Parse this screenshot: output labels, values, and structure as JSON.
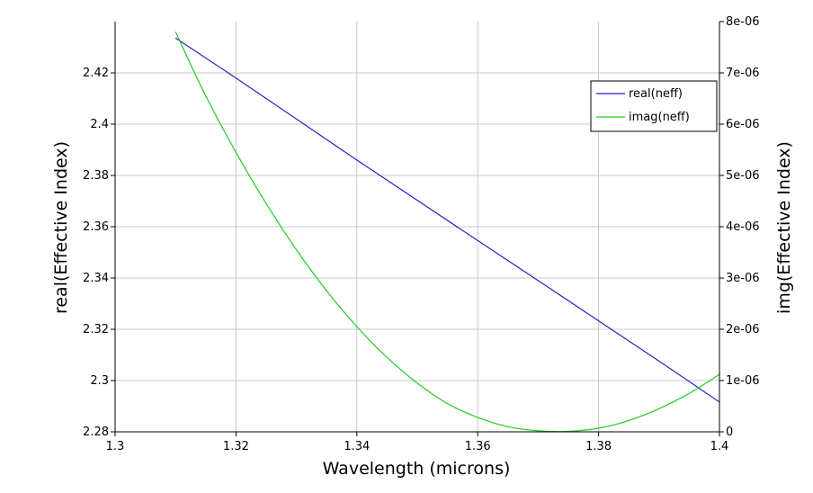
{
  "chart_data": {
    "type": "line",
    "title": "",
    "xlabel": "Wavelength (microns)",
    "ylabel_left": "real(Effective Index)",
    "ylabel_right": "img(Effective Index)",
    "xlim": [
      1.3,
      1.4
    ],
    "ylim_left": [
      2.28,
      2.44
    ],
    "ylim_right": [
      0,
      8e-06
    ],
    "x_ticks": [
      "1.3",
      "1.32",
      "1.34",
      "1.36",
      "1.38",
      "1.4"
    ],
    "x_tick_values": [
      1.3,
      1.32,
      1.34,
      1.36,
      1.38,
      1.4
    ],
    "y_left_ticks": [
      "2.28",
      "2.3",
      "2.32",
      "2.34",
      "2.36",
      "2.38",
      "2.4",
      "2.42"
    ],
    "y_left_tick_values": [
      2.28,
      2.3,
      2.32,
      2.34,
      2.36,
      2.38,
      2.4,
      2.42
    ],
    "y_right_ticks": [
      "0",
      "1e-06",
      "2e-06",
      "3e-06",
      "4e-06",
      "5e-06",
      "6e-06",
      "7e-06",
      "8e-06"
    ],
    "y_right_tick_values": [
      0,
      1e-06,
      2e-06,
      3e-06,
      4e-06,
      5e-06,
      6e-06,
      7e-06,
      8e-06
    ],
    "grid": true,
    "legend_position": "top-right",
    "series": [
      {
        "name": "real(neff)",
        "axis": "left",
        "color": "#2222cc",
        "x": [
          1.31,
          1.32,
          1.33,
          1.34,
          1.35,
          1.36,
          1.37,
          1.38,
          1.39,
          1.4
        ],
        "y": [
          2.4336,
          2.418,
          2.402,
          2.386,
          2.3703,
          2.3546,
          2.339,
          2.3233,
          2.3076,
          2.2916
        ]
      },
      {
        "name": "imag(neff)",
        "axis": "right",
        "color": "#22cc22",
        "x": [
          1.31,
          1.315,
          1.32,
          1.325,
          1.33,
          1.335,
          1.34,
          1.345,
          1.35,
          1.355,
          1.36,
          1.365,
          1.37,
          1.375,
          1.38,
          1.385,
          1.39,
          1.395,
          1.4
        ],
        "y": [
          7.8e-06,
          6.55e-06,
          5.45e-06,
          4.45e-06,
          3.55e-06,
          2.75e-06,
          2.05e-06,
          1.45e-06,
          9.5e-07,
          5.5e-07,
          2.8e-07,
          1e-07,
          2e-08,
          1e-08,
          7e-08,
          2.2e-07,
          4.5e-07,
          7.5e-07,
          1.12e-06
        ]
      }
    ]
  }
}
